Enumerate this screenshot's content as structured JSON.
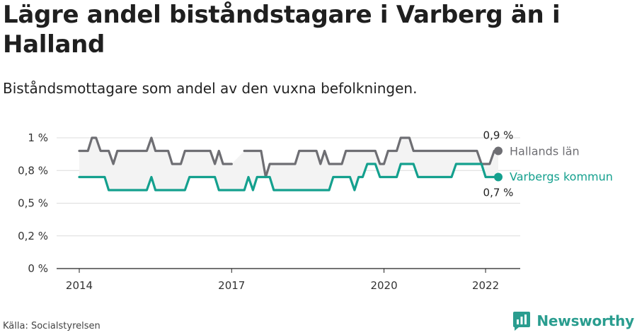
{
  "title": "Lägre andel biståndstagare i Varberg än i Halland",
  "subtitle": "Biståndsmottagare som andel av den vuxna befolkningen.",
  "source": "Källa: Socialstyrelsen",
  "brand": {
    "name": "Newsworthy",
    "color": "#2a9d8f"
  },
  "colors": {
    "hallands": "#6e6e73",
    "varbergs": "#14a08e",
    "band": "#f3f3f3",
    "grid": "#dcdcdc",
    "axis": "#222222"
  },
  "chart_data": {
    "type": "line",
    "x_ticks": [
      {
        "x": 2014,
        "label": "2014"
      },
      {
        "x": 2017,
        "label": "2017"
      },
      {
        "x": 2020,
        "label": "2020"
      },
      {
        "x": 2022,
        "label": "2022"
      }
    ],
    "y_ticks": [
      {
        "y": 0,
        "label": "0 %"
      },
      {
        "y": 0.25,
        "label": "0,2 %"
      },
      {
        "y": 0.5,
        "label": "0,5 %"
      },
      {
        "y": 0.75,
        "label": "0,8 %"
      },
      {
        "y": 1.0,
        "label": "1 %"
      }
    ],
    "xlim": [
      2013.5,
      2022.5
    ],
    "ylim": [
      0,
      1.05
    ],
    "series": [
      {
        "name": "Hallands län",
        "end_label": "0,9 %",
        "segments": [
          [
            [
              2014.0,
              0.9
            ],
            [
              2014.17,
              0.9
            ],
            [
              2014.25,
              1.0
            ],
            [
              2014.33,
              1.0
            ],
            [
              2014.42,
              0.9
            ],
            [
              2014.58,
              0.9
            ],
            [
              2014.67,
              0.8
            ],
            [
              2014.75,
              0.9
            ],
            [
              2015.33,
              0.9
            ],
            [
              2015.42,
              1.0
            ],
            [
              2015.5,
              0.9
            ],
            [
              2015.75,
              0.9
            ],
            [
              2015.83,
              0.8
            ],
            [
              2016.0,
              0.8
            ],
            [
              2016.08,
              0.9
            ],
            [
              2016.58,
              0.9
            ],
            [
              2016.67,
              0.8
            ],
            [
              2016.75,
              0.9
            ],
            [
              2016.83,
              0.8
            ],
            [
              2017.0,
              0.8
            ]
          ],
          [
            [
              2017.25,
              0.9
            ],
            [
              2017.58,
              0.9
            ],
            [
              2017.67,
              0.7
            ],
            [
              2017.75,
              0.8
            ],
            [
              2018.25,
              0.8
            ],
            [
              2018.33,
              0.9
            ],
            [
              2018.67,
              0.9
            ],
            [
              2018.75,
              0.8
            ],
            [
              2018.83,
              0.9
            ],
            [
              2018.92,
              0.8
            ],
            [
              2019.17,
              0.8
            ],
            [
              2019.25,
              0.9
            ],
            [
              2019.83,
              0.9
            ],
            [
              2019.92,
              0.8
            ],
            [
              2020.0,
              0.8
            ],
            [
              2020.08,
              0.9
            ],
            [
              2020.25,
              0.9
            ],
            [
              2020.33,
              1.0
            ],
            [
              2020.5,
              1.0
            ],
            [
              2020.58,
              0.9
            ],
            [
              2021.83,
              0.9
            ],
            [
              2021.92,
              0.8
            ],
            [
              2022.08,
              0.8
            ],
            [
              2022.17,
              0.9
            ],
            [
              2022.25,
              0.9
            ]
          ]
        ]
      },
      {
        "name": "Varbergs kommun",
        "end_label": "0,7 %",
        "segments": [
          [
            [
              2014.0,
              0.7
            ],
            [
              2014.5,
              0.7
            ],
            [
              2014.58,
              0.6
            ],
            [
              2015.33,
              0.6
            ],
            [
              2015.42,
              0.7
            ],
            [
              2015.5,
              0.6
            ],
            [
              2016.08,
              0.6
            ],
            [
              2016.17,
              0.7
            ],
            [
              2016.67,
              0.7
            ],
            [
              2016.75,
              0.6
            ],
            [
              2017.25,
              0.6
            ],
            [
              2017.33,
              0.7
            ],
            [
              2017.42,
              0.6
            ],
            [
              2017.5,
              0.7
            ],
            [
              2017.75,
              0.7
            ],
            [
              2017.83,
              0.6
            ],
            [
              2018.92,
              0.6
            ],
            [
              2019.0,
              0.7
            ],
            [
              2019.33,
              0.7
            ],
            [
              2019.42,
              0.6
            ],
            [
              2019.5,
              0.7
            ],
            [
              2019.58,
              0.7
            ],
            [
              2019.67,
              0.8
            ],
            [
              2019.83,
              0.8
            ],
            [
              2019.92,
              0.7
            ],
            [
              2020.25,
              0.7
            ],
            [
              2020.33,
              0.8
            ],
            [
              2020.58,
              0.8
            ],
            [
              2020.67,
              0.7
            ],
            [
              2021.33,
              0.7
            ],
            [
              2021.42,
              0.8
            ],
            [
              2021.92,
              0.8
            ],
            [
              2022.0,
              0.7
            ],
            [
              2022.25,
              0.7
            ]
          ]
        ]
      }
    ]
  }
}
